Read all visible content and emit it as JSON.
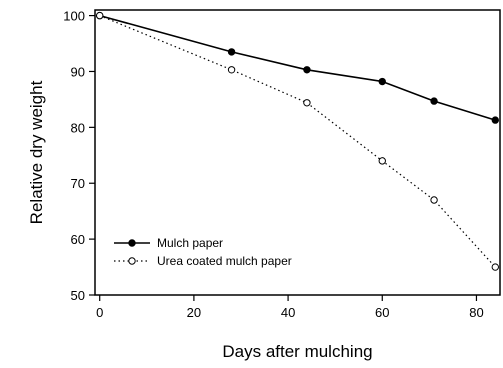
{
  "chart_data": {
    "type": "line",
    "title": "",
    "xlabel": "Days after mulching",
    "ylabel": "Relative dry weight",
    "xlim": [
      -1,
      85
    ],
    "ylim": [
      50,
      101
    ],
    "xticks": [
      0,
      20,
      40,
      60,
      80
    ],
    "yticks": [
      50,
      60,
      70,
      80,
      90,
      100
    ],
    "grid": false,
    "legend_position": "bottom-left",
    "series": [
      {
        "name": "Mulch paper",
        "line_style": "solid",
        "marker": "filled-circle",
        "color": "#000000",
        "x": [
          0,
          28,
          44,
          60,
          71,
          84
        ],
        "y": [
          100,
          93.5,
          90.3,
          88.2,
          84.7,
          81.3
        ]
      },
      {
        "name": "Urea coated mulch paper",
        "line_style": "dotted",
        "marker": "open-circle",
        "color": "#000000",
        "x": [
          0,
          28,
          44,
          60,
          71,
          84
        ],
        "y": [
          100,
          90.3,
          84.4,
          74.0,
          67.0,
          55.0
        ]
      }
    ]
  }
}
